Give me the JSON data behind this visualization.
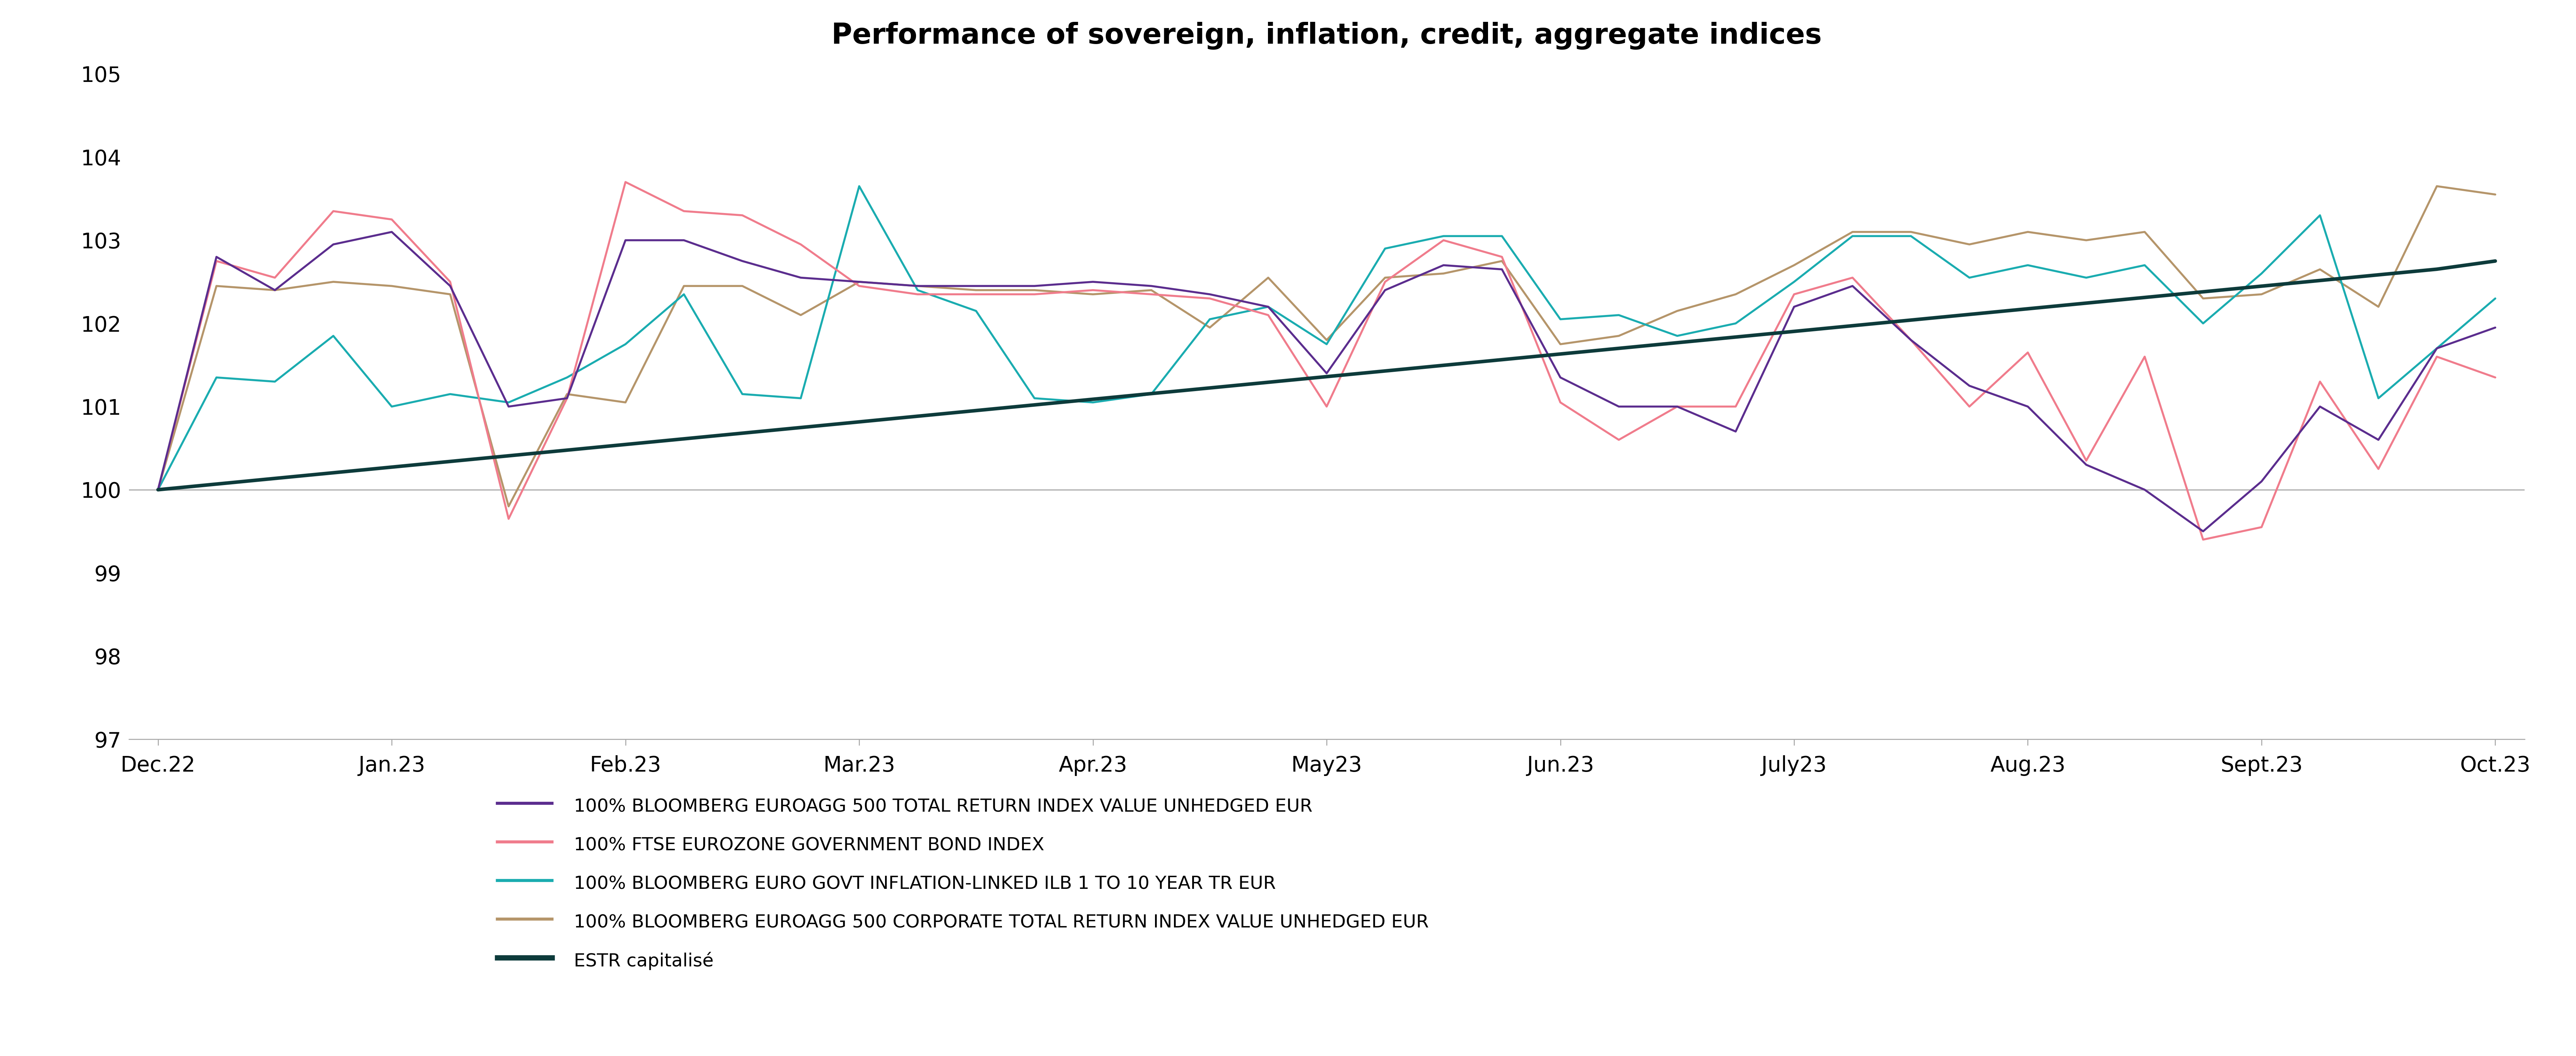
{
  "title": "Performance of sovereign, inflation, credit, aggregate indices",
  "x_labels": [
    "Dec.22",
    "Jan.23",
    "Feb.23",
    "Mar.23",
    "Apr.23",
    "May23",
    "Jun.23",
    "July23",
    "Aug.23",
    "Sept.23",
    "Oct.23"
  ],
  "x_tick_positions": [
    0,
    4,
    8,
    12,
    16,
    20,
    24,
    28,
    32,
    36,
    40
  ],
  "ylim": [
    97,
    105
  ],
  "yticks": [
    97,
    98,
    99,
    100,
    101,
    102,
    103,
    104,
    105
  ],
  "n_points": 41,
  "series": {
    "bloomberg_euroagg": {
      "label": "100% BLOOMBERG EUROAGG 500 TOTAL RETURN INDEX VALUE UNHEDGED EUR",
      "color": "#5b2d8e",
      "linewidth": 4.0,
      "values": [
        100.0,
        102.8,
        102.4,
        102.95,
        103.1,
        102.45,
        101.0,
        101.1,
        103.0,
        103.0,
        102.75,
        102.55,
        102.5,
        102.45,
        102.45,
        102.45,
        102.5,
        102.45,
        102.35,
        102.2,
        101.4,
        102.4,
        102.7,
        102.65,
        101.35,
        101.0,
        101.0,
        100.7,
        102.2,
        102.45,
        101.8,
        101.25,
        101.0,
        100.3,
        100.0,
        99.5,
        100.1,
        101.0,
        100.6,
        101.7,
        101.95
      ]
    },
    "ftse_eurozone": {
      "label": "100% FTSE EUROZONE GOVERNMENT BOND INDEX",
      "color": "#f07c8c",
      "linewidth": 4.0,
      "values": [
        100.0,
        102.75,
        102.55,
        103.35,
        103.25,
        102.5,
        99.65,
        101.1,
        103.7,
        103.35,
        103.3,
        102.95,
        102.45,
        102.35,
        102.35,
        102.35,
        102.4,
        102.35,
        102.3,
        102.1,
        101.0,
        102.5,
        103.0,
        102.8,
        101.05,
        100.6,
        101.0,
        101.0,
        102.35,
        102.55,
        101.8,
        101.0,
        101.65,
        100.35,
        101.6,
        99.4,
        99.55,
        101.3,
        100.25,
        101.6,
        101.35
      ]
    },
    "bloomberg_inflation": {
      "label": "100% BLOOMBERG EURO GOVT INFLATION-LINKED ILB 1 TO 10 YEAR TR EUR",
      "color": "#1aacb0",
      "linewidth": 4.0,
      "values": [
        100.0,
        101.35,
        101.3,
        101.85,
        101.0,
        101.15,
        101.05,
        101.35,
        101.75,
        102.35,
        101.15,
        101.1,
        103.65,
        102.4,
        102.15,
        101.1,
        101.05,
        101.15,
        102.05,
        102.2,
        101.75,
        102.9,
        103.05,
        103.05,
        102.05,
        102.1,
        101.85,
        102.0,
        102.5,
        103.05,
        103.05,
        102.55,
        102.7,
        102.55,
        102.7,
        102.0,
        102.6,
        103.3,
        101.1,
        101.7,
        102.3
      ]
    },
    "bloomberg_corporate": {
      "label": "100% BLOOMBERG EUROAGG 500 CORPORATE TOTAL RETURN INDEX VALUE UNHEDGED EUR",
      "color": "#b5956a",
      "linewidth": 4.0,
      "values": [
        100.0,
        102.45,
        102.4,
        102.5,
        102.45,
        102.35,
        99.8,
        101.15,
        101.05,
        102.45,
        102.45,
        102.1,
        102.5,
        102.45,
        102.4,
        102.4,
        102.35,
        102.4,
        101.95,
        102.55,
        101.8,
        102.55,
        102.6,
        102.75,
        101.75,
        101.85,
        102.15,
        102.35,
        102.7,
        103.1,
        103.1,
        102.95,
        103.1,
        103.0,
        103.1,
        102.3,
        102.35,
        102.65,
        102.2,
        103.65,
        103.55
      ]
    },
    "estr": {
      "label": "ESTR capitalisé",
      "color": "#0d3b3b",
      "linewidth": 7.0,
      "values": [
        100.0,
        100.068,
        100.136,
        100.204,
        100.272,
        100.34,
        100.408,
        100.476,
        100.544,
        100.612,
        100.68,
        100.748,
        100.816,
        100.884,
        100.952,
        101.02,
        101.088,
        101.156,
        101.224,
        101.292,
        101.36,
        101.428,
        101.496,
        101.564,
        101.632,
        101.7,
        101.768,
        101.836,
        101.904,
        101.972,
        102.04,
        102.108,
        102.176,
        102.244,
        102.312,
        102.38,
        102.448,
        102.516,
        102.584,
        102.652,
        102.75
      ]
    }
  },
  "hline_y": 100,
  "hline_color": "#b0b0b0",
  "background_color": "#ffffff",
  "title_fontsize": 56,
  "tick_fontsize": 42,
  "legend_fontsize": 36
}
